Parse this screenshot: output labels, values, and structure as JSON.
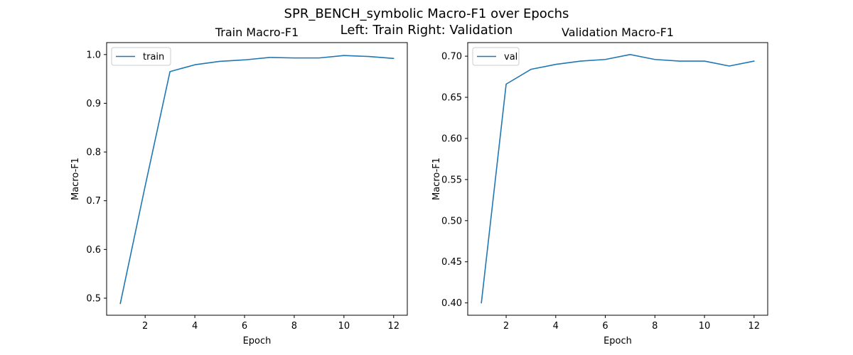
{
  "figure": {
    "suptitle_line1": "SPR_BENCH_symbolic Macro-F1 over Epochs",
    "suptitle_line2": "Left: Train  Right: Validation"
  },
  "chart_data": [
    {
      "type": "line",
      "title": "Train Macro-F1",
      "xlabel": "Epoch",
      "ylabel": "Macro-F1",
      "xlim": [
        0.45,
        12.55
      ],
      "ylim": [
        0.465,
        1.0245
      ],
      "xticks": [
        2,
        4,
        6,
        8,
        10,
        12
      ],
      "yticks": [
        0.5,
        0.6,
        0.7,
        0.8,
        0.9,
        1.0
      ],
      "ytick_labels": [
        "0.5",
        "0.6",
        "0.7",
        "0.8",
        "0.9",
        "1.0"
      ],
      "legend_position": "upper-left",
      "grid": false,
      "series": [
        {
          "name": "train",
          "color": "#1f77b4",
          "x": [
            1,
            2,
            3,
            4,
            5,
            6,
            7,
            8,
            9,
            10,
            11,
            12
          ],
          "y": [
            0.489,
            0.73,
            0.965,
            0.979,
            0.986,
            0.989,
            0.994,
            0.993,
            0.993,
            0.998,
            0.996,
            0.992
          ]
        }
      ]
    },
    {
      "type": "line",
      "title": "Validation Macro-F1",
      "xlabel": "Epoch",
      "ylabel": "Macro-F1",
      "xlim": [
        0.45,
        12.55
      ],
      "ylim": [
        0.385,
        0.7165
      ],
      "xticks": [
        2,
        4,
        6,
        8,
        10,
        12
      ],
      "yticks": [
        0.4,
        0.45,
        0.5,
        0.55,
        0.6,
        0.65,
        0.7
      ],
      "ytick_labels": [
        "0.40",
        "0.45",
        "0.50",
        "0.55",
        "0.60",
        "0.65",
        "0.70"
      ],
      "legend_position": "upper-left",
      "grid": false,
      "series": [
        {
          "name": "val",
          "color": "#1f77b4",
          "x": [
            1,
            2,
            3,
            4,
            5,
            6,
            7,
            8,
            9,
            10,
            11,
            12
          ],
          "y": [
            0.4,
            0.666,
            0.684,
            0.69,
            0.694,
            0.696,
            0.702,
            0.696,
            0.694,
            0.694,
            0.688,
            0.694
          ]
        }
      ]
    }
  ]
}
